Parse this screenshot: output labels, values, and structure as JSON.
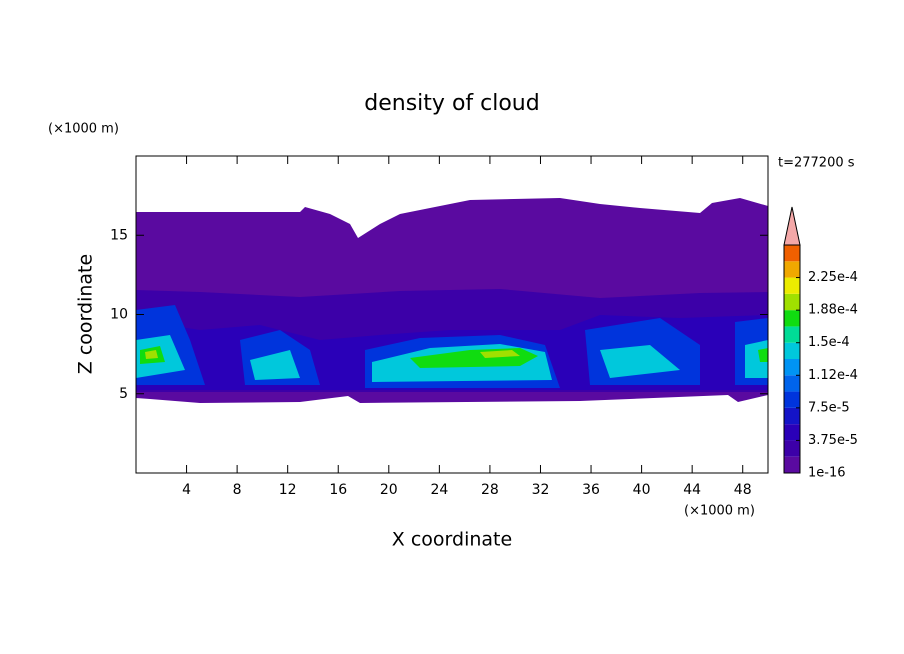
{
  "chart_data": {
    "type": "contour",
    "title": "density of cloud",
    "x_label": "X coordinate",
    "y_label": "Z coordinate",
    "x_unit": "(×1000 m)",
    "y_unit": "(×1000 m)",
    "time_label": "t=277200 s",
    "xlim": [
      0,
      50
    ],
    "ylim": [
      0,
      20
    ],
    "xticks": [
      4,
      8,
      12,
      16,
      20,
      24,
      28,
      32,
      36,
      40,
      44,
      48
    ],
    "yticks": [
      5,
      10,
      15
    ],
    "colorbar": {
      "bounds": [
        1e-16,
        1.875e-05,
        3.75e-05,
        5.625e-05,
        7.5e-05,
        9.375e-05,
        0.0001125,
        0.00013125,
        0.00015,
        0.00016875,
        0.0001875,
        0.00020625,
        0.000225,
        0.00024375,
        0.0002625
      ],
      "colors": [
        "#5a0aa0",
        "#3c00a8",
        "#2a00b8",
        "#1414c8",
        "#0034dc",
        "#0064ec",
        "#0094f4",
        "#00c8dc",
        "#00dc96",
        "#10dc10",
        "#a0e000",
        "#ecec00",
        "#f0a800",
        "#f06000"
      ],
      "extend_color": "#f4a8a8",
      "ticks": [
        {
          "value": 1e-16,
          "label": "1e-16"
        },
        {
          "value": 3.75e-05,
          "label": "3.75e-5"
        },
        {
          "value": 7.5e-05,
          "label": "7.5e-5"
        },
        {
          "value": 0.0001125,
          "label": "1.12e-4"
        },
        {
          "value": 0.00015,
          "label": "1.5e-4"
        },
        {
          "value": 0.0001875,
          "label": "1.88e-4"
        },
        {
          "value": 0.000225,
          "label": "2.25e-4"
        }
      ]
    }
  }
}
